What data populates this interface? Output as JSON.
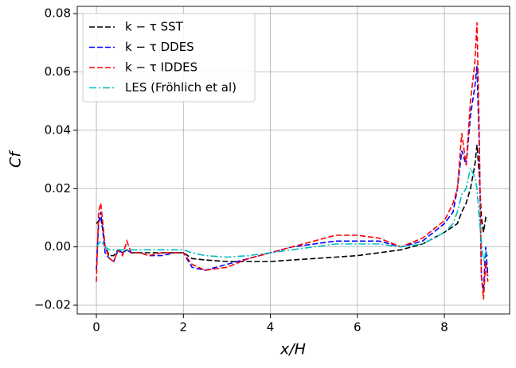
{
  "chart_data": {
    "type": "line",
    "xlabel": "x/H",
    "ylabel": "Cf",
    "x": [
      0,
      0.05,
      0.1,
      0.15,
      0.2,
      0.3,
      0.4,
      0.5,
      0.6,
      0.7,
      0.8,
      1,
      1.2,
      1.5,
      1.8,
      2,
      2.2,
      2.5,
      3,
      3.5,
      4,
      4.5,
      5,
      5.5,
      6,
      6.5,
      7,
      7.5,
      8,
      8.2,
      8.3,
      8.4,
      8.5,
      8.6,
      8.7,
      8.75,
      8.8,
      8.85,
      8.9,
      8.95,
      9
    ],
    "series": [
      {
        "name": "k − τ SST",
        "color": "#000000",
        "linestyle": "dashed",
        "values": [
          0.008,
          0.009,
          0.01,
          0.006,
          0,
          -0.003,
          -0.003,
          -0.001,
          -0.002,
          -0.001,
          -0.002,
          -0.002,
          -0.002,
          -0.002,
          -0.002,
          -0.002,
          -0.004,
          -0.0045,
          -0.005,
          -0.005,
          -0.005,
          -0.0045,
          -0.004,
          -0.0035,
          -0.003,
          -0.002,
          -0.001,
          0.001,
          0.005,
          0.007,
          0.008,
          0.012,
          0.015,
          0.02,
          0.028,
          0.035,
          0.025,
          0.01,
          0.005,
          0.01,
          0.009
        ]
      },
      {
        "name": "k − τ DDES",
        "color": "#0000ff",
        "linestyle": "dashed",
        "values": [
          -0.008,
          0.008,
          0.012,
          0.005,
          -0.002,
          -0.004,
          -0.005,
          -0.001,
          -0.002,
          -0.001,
          -0.002,
          -0.002,
          -0.003,
          -0.003,
          -0.002,
          -0.002,
          -0.007,
          -0.008,
          -0.006,
          -0.004,
          -0.002,
          0,
          0.001,
          0.002,
          0.002,
          0.002,
          0,
          0.002,
          0.008,
          0.012,
          0.02,
          0.033,
          0.028,
          0.045,
          0.055,
          0.062,
          0.035,
          -0.01,
          -0.015,
          0,
          -0.01
        ]
      },
      {
        "name": "k − τ IDDES",
        "color": "#ff0000",
        "linestyle": "dashed",
        "values": [
          -0.012,
          0.012,
          0.015,
          0.008,
          0,
          -0.004,
          -0.005,
          -0.001,
          -0.003,
          0.002,
          -0.002,
          -0.002,
          -0.003,
          -0.002,
          -0.002,
          -0.002,
          -0.006,
          -0.008,
          -0.007,
          -0.004,
          -0.002,
          0,
          0.002,
          0.004,
          0.004,
          0.003,
          0,
          0.003,
          0.009,
          0.015,
          0.02,
          0.039,
          0.028,
          0.05,
          0.063,
          0.077,
          0.04,
          -0.01,
          -0.018,
          -0.005,
          -0.012
        ]
      },
      {
        "name": "LES (Fröhlich et al)",
        "color": "#00bfbf",
        "linestyle": "dashdot",
        "values": [
          0,
          0.001,
          0.002,
          0.001,
          0,
          -0.001,
          -0.001,
          -0.001,
          -0.001,
          -0.001,
          -0.001,
          -0.001,
          -0.001,
          -0.001,
          -0.001,
          -0.001,
          -0.002,
          -0.003,
          -0.0035,
          -0.003,
          -0.002,
          -0.001,
          0,
          0.001,
          0.001,
          0.001,
          0,
          0.001,
          0.005,
          0.008,
          0.012,
          0.018,
          0.02,
          0.027,
          0.024,
          0.02,
          0.01,
          0.002,
          -0.005,
          -0.002,
          -0.003
        ]
      }
    ],
    "xlim": [
      -0.44,
      9.5
    ],
    "ylim": [
      -0.023,
      0.0825
    ],
    "xticks": [
      0,
      2,
      4,
      6,
      8
    ],
    "yticks": [
      {
        "value": -0.02,
        "label": "−0.02"
      },
      {
        "value": 0,
        "label": "0.00"
      },
      0.02,
      0.04,
      0.06,
      0.08
    ],
    "grid": true,
    "legend": "upper left"
  }
}
